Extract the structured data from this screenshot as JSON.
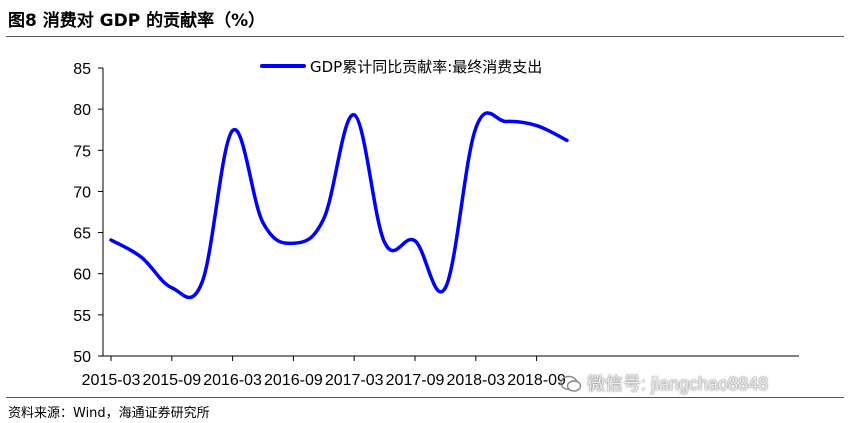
{
  "header": {
    "title": "图8 消费对 GDP 的贡献率（%）"
  },
  "footer": {
    "source": "资料来源：Wind，海通证券研究所"
  },
  "watermark": {
    "text": "微信号: jiangchao8848"
  },
  "colors": {
    "series": "#0000ff",
    "axis": "#000000"
  },
  "chart_data": {
    "type": "line",
    "title": "",
    "xlabel": "",
    "ylabel": "",
    "ylim": [
      50,
      85
    ],
    "yticks": [
      50,
      55,
      60,
      65,
      70,
      75,
      80,
      85
    ],
    "x_tick_labels": [
      "2015-03",
      "2015-09",
      "2016-03",
      "2016-09",
      "2017-03",
      "2017-09",
      "2018-03",
      "2018-09"
    ],
    "legend_position": "top-center",
    "x": [
      "2015-03",
      "2015-06",
      "2015-09",
      "2015-12",
      "2016-03",
      "2016-06",
      "2016-09",
      "2016-12",
      "2017-03",
      "2017-06",
      "2017-09",
      "2017-12",
      "2018-03",
      "2018-06",
      "2018-09",
      "2018-12"
    ],
    "series": [
      {
        "name": "GDP累计同比贡献率:最终消费支出",
        "values": [
          64.1,
          62.0,
          58.3,
          59.0,
          77.4,
          66.2,
          63.7,
          66.7,
          79.3,
          63.8,
          64.0,
          58.3,
          77.7,
          78.5,
          78.0,
          76.2
        ]
      }
    ]
  }
}
